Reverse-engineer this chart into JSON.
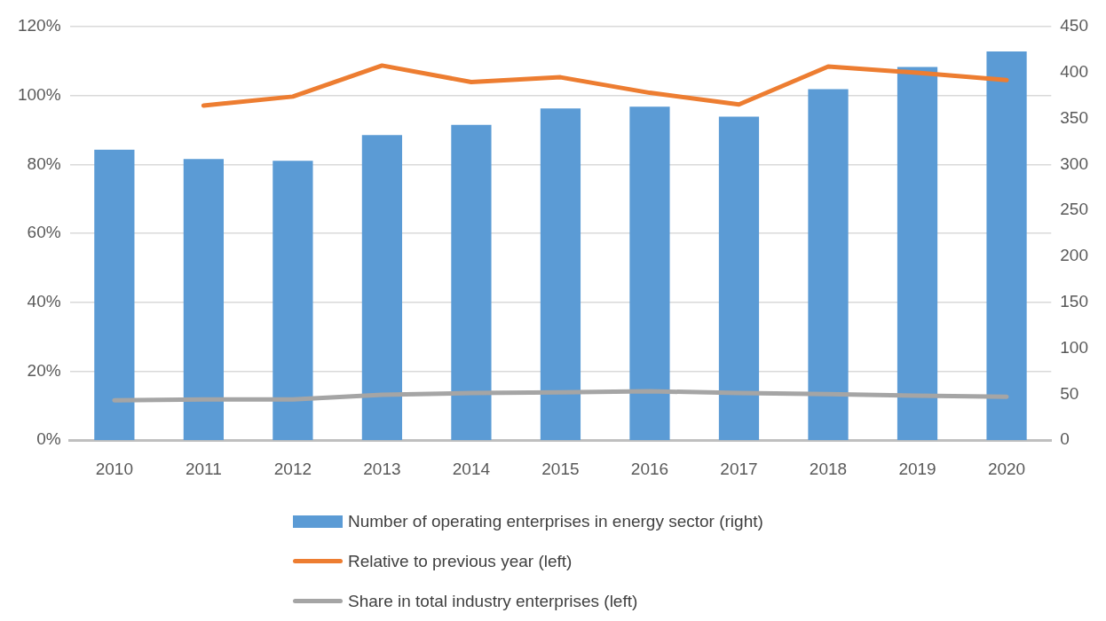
{
  "chart_data": {
    "type": "bar",
    "categories": [
      "2010",
      "2011",
      "2012",
      "2013",
      "2014",
      "2015",
      "2016",
      "2017",
      "2018",
      "2019",
      "2020"
    ],
    "series": [
      {
        "name": "Number of operating enterprises in energy sector (right)",
        "axis": "y2",
        "color": "#5b9bd5",
        "values": [
          316,
          306,
          304,
          332,
          343,
          361,
          363,
          352,
          382,
          406,
          423
        ]
      },
      {
        "name": "Relative to previous year (left)",
        "type": "line",
        "color": "#ed7d31",
        "values": [
          null,
          97.1,
          99.7,
          108.7,
          103.9,
          105.3,
          100.8,
          97.4,
          108.4,
          106.6,
          104.5
        ]
      },
      {
        "name": "Share in total industry enterprises (left)",
        "type": "line",
        "color": "#a5a5a5",
        "values": [
          11.6,
          11.8,
          11.8,
          13.2,
          13.7,
          13.9,
          14.2,
          13.7,
          13.4,
          12.9,
          12.6
        ]
      }
    ],
    "ylim": [
      0,
      120
    ],
    "yticks": [
      {
        "value": 0,
        "label": "0%"
      },
      {
        "value": 20,
        "label": "20%"
      },
      {
        "value": 40,
        "label": "40%"
      },
      {
        "value": 60,
        "label": "60%"
      },
      {
        "value": 80,
        "label": "80%"
      },
      {
        "value": 100,
        "label": "100%"
      },
      {
        "value": 120,
        "label": "120%"
      }
    ],
    "y2lim": [
      0,
      450
    ],
    "y2ticks": [
      0,
      50,
      100,
      150,
      200,
      250,
      300,
      350,
      400,
      450
    ],
    "grid": "y",
    "legend": "bottom",
    "marker": "none"
  }
}
